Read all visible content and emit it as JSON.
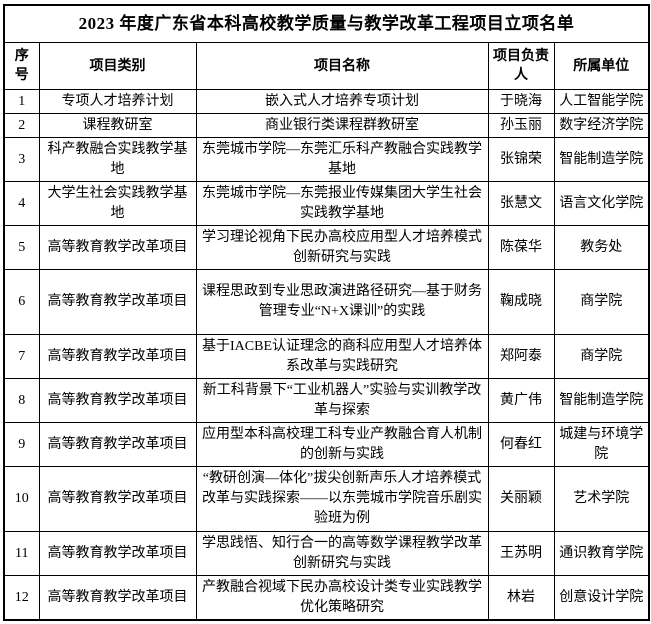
{
  "title": "2023 年度广东省本科高校教学质量与教学改革工程项目立项名单",
  "colors": {
    "border": "#000000",
    "text": "#000000",
    "background": "#ffffff"
  },
  "table": {
    "headers": [
      "序号",
      "项目类别",
      "项目名称",
      "项目负责人",
      "所属单位"
    ],
    "rows": [
      {
        "no": "1",
        "category": "专项人才培养计划",
        "name": "嵌入式人才培养专项计划",
        "leader": "于晓海",
        "unit": "人工智能学院"
      },
      {
        "no": "2",
        "category": "课程教研室",
        "name": "商业银行类课程群教研室",
        "leader": "孙玉丽",
        "unit": "数字经济学院"
      },
      {
        "no": "3",
        "category": "科产教融合实践教学基地",
        "name": "东莞城市学院—东莞汇乐科产教融合实践教学基地",
        "leader": "张锦荣",
        "unit": "智能制造学院"
      },
      {
        "no": "4",
        "category": "大学生社会实践教学基地",
        "name": "东莞城市学院—东莞报业传媒集团大学生社会实践教学基地",
        "leader": "张慧文",
        "unit": "语言文化学院"
      },
      {
        "no": "5",
        "category": "高等教育教学改革项目",
        "name": "学习理论视角下民办高校应用型人才培养模式创新研究与实践",
        "leader": "陈葆华",
        "unit": "教务处"
      },
      {
        "no": "6",
        "category": "高等教育教学改革项目",
        "name": "课程思政到专业思政演进路径研究—基于财务管理专业“N+X课训”的实践",
        "leader": "鞠成晓",
        "unit": "商学院"
      },
      {
        "no": "7",
        "category": "高等教育教学改革项目",
        "name": "基于IACBE认证理念的商科应用型人才培养体系改革与实践研究",
        "leader": "郑阿泰",
        "unit": "商学院"
      },
      {
        "no": "8",
        "category": "高等教育教学改革项目",
        "name": "新工科背景下“工业机器人”实验与实训教学改革与探索",
        "leader": "黄广伟",
        "unit": "智能制造学院"
      },
      {
        "no": "9",
        "category": "高等教育教学改革项目",
        "name": "应用型本科高校理工科专业产教融合育人机制的创新与实践",
        "leader": "何春红",
        "unit": "城建与环境学院"
      },
      {
        "no": "10",
        "category": "高等教育教学改革项目",
        "name": "“教研创演—体化”拔尖创新声乐人才培养模式改革与实践探索——以东莞城市学院音乐剧实验班为例",
        "leader": "关丽颖",
        "unit": "艺术学院"
      },
      {
        "no": "11",
        "category": "高等教育教学改革项目",
        "name": "学思践悟、知行合一的高等数学课程教学改革创新研究与实践",
        "leader": "王苏明",
        "unit": "通识教育学院"
      },
      {
        "no": "12",
        "category": "高等教育教学改革项目",
        "name": "产教融合视域下民办高校设计类专业实践教学优化策略研究",
        "leader": "林岩",
        "unit": "创意设计学院"
      }
    ]
  }
}
